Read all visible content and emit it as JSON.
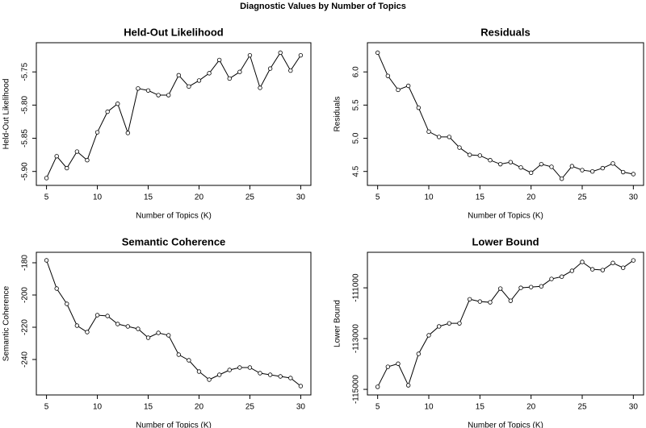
{
  "title": "Diagnostic Values by Number of Topics",
  "chart_data": [
    {
      "type": "line",
      "title": "Held-Out Likelihood",
      "x_label": "Number of Topics (K)",
      "y_label": "Held-Out Likelihood",
      "color": "#000000",
      "x": [
        5,
        6,
        7,
        8,
        9,
        10,
        11,
        12,
        13,
        14,
        15,
        16,
        17,
        18,
        19,
        20,
        21,
        22,
        23,
        24,
        25,
        26,
        27,
        28,
        29,
        30
      ],
      "values": [
        -5.91,
        -5.877,
        -5.895,
        -5.87,
        -5.883,
        -5.841,
        -5.81,
        -5.798,
        -5.842,
        -5.775,
        -5.778,
        -5.785,
        -5.785,
        -5.755,
        -5.772,
        -5.763,
        -5.752,
        -5.732,
        -5.76,
        -5.75,
        -5.725,
        -5.774,
        -5.745,
        -5.721,
        -5.748,
        -5.725
      ],
      "xlim": [
        4,
        31
      ],
      "ylim": [
        -5.921,
        -5.706
      ],
      "xticks": [
        5,
        10,
        15,
        20,
        25,
        30
      ],
      "yticks": [
        {
          "value": -5.9,
          "label": "-5.90"
        },
        -5.85,
        {
          "value": -5.8,
          "label": "-5.80"
        },
        -5.75
      ]
    },
    {
      "type": "line",
      "title": "Residuals",
      "x_label": "Number of Topics (K)",
      "y_label": "Residuals",
      "color": "#000000",
      "x": [
        5,
        6,
        7,
        8,
        9,
        10,
        11,
        12,
        13,
        14,
        15,
        16,
        17,
        18,
        19,
        20,
        21,
        22,
        23,
        24,
        25,
        26,
        27,
        28,
        29,
        30
      ],
      "values": [
        6.29,
        5.94,
        5.73,
        5.79,
        5.46,
        5.1,
        5.02,
        5.02,
        4.86,
        4.75,
        4.74,
        4.67,
        4.61,
        4.64,
        4.56,
        4.48,
        4.61,
        4.57,
        4.39,
        4.58,
        4.52,
        4.5,
        4.55,
        4.62,
        4.49,
        4.46
      ],
      "xlim": [
        4,
        31
      ],
      "ylim": [
        4.29,
        6.44
      ],
      "xticks": [
        5,
        10,
        15,
        20,
        25,
        30
      ],
      "yticks": [
        4.5,
        {
          "value": 5,
          "label": "5.0"
        },
        5.5,
        {
          "value": 6,
          "label": "6.0"
        }
      ]
    },
    {
      "type": "line",
      "title": "Semantic Coherence",
      "x_label": "Number of Topics (K)",
      "y_label": "Semantic Coherence",
      "color": "#000000",
      "x": [
        5,
        6,
        7,
        8,
        9,
        10,
        11,
        12,
        13,
        14,
        15,
        16,
        17,
        18,
        19,
        20,
        21,
        22,
        23,
        24,
        25,
        26,
        27,
        28,
        29,
        30
      ],
      "values": [
        -178.5,
        -196,
        -205.5,
        -219,
        -223,
        -212.5,
        -213,
        -218,
        -219.5,
        -221,
        -226.5,
        -223.5,
        -225,
        -237,
        -240.5,
        -247.5,
        -252.5,
        -249.5,
        -246.5,
        -245,
        -245,
        -248.5,
        -249.5,
        -250.5,
        -251.5,
        -256.5
      ],
      "xlim": [
        4,
        31
      ],
      "ylim": [
        -262,
        -173.5
      ],
      "xticks": [
        5,
        10,
        15,
        20,
        25,
        30
      ],
      "yticks": [
        -240,
        -220,
        -200,
        -180
      ]
    },
    {
      "type": "line",
      "title": "Lower Bound",
      "x_label": "Number of Topics (K)",
      "y_label": "Lower Bound",
      "color": "#000000",
      "x": [
        5,
        6,
        7,
        8,
        9,
        10,
        11,
        12,
        13,
        14,
        15,
        16,
        17,
        18,
        19,
        20,
        21,
        22,
        23,
        24,
        25,
        26,
        27,
        28,
        29,
        30
      ],
      "values": [
        -114900,
        -114110,
        -113990,
        -114840,
        -113600,
        -112870,
        -112520,
        -112400,
        -112400,
        -111450,
        -111540,
        -111570,
        -111030,
        -111510,
        -111000,
        -110970,
        -110940,
        -110650,
        -110560,
        -110330,
        -109980,
        -110270,
        -110300,
        -110020,
        -110210,
        -109920
      ],
      "xlim": [
        4,
        31
      ],
      "ylim": [
        -115220,
        -109600
      ],
      "xticks": [
        5,
        10,
        15,
        20,
        25,
        30
      ],
      "yticks": [
        -115000,
        -113000,
        -111000
      ]
    }
  ]
}
